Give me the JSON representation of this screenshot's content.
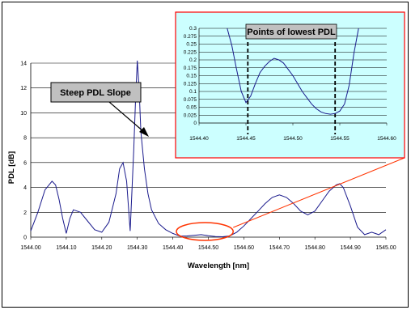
{
  "chart_data": [
    {
      "type": "line",
      "xlabel": "Wavelength [nm]",
      "ylabel": "PDL [dB]",
      "xlim": [
        1544.0,
        1545.0
      ],
      "ylim": [
        0,
        14
      ],
      "x_tick_labels": [
        "1544.00",
        "1544.10",
        "1544.20",
        "1544.30",
        "1544.40",
        "1544.50",
        "1544.60",
        "1544.70",
        "1544.80",
        "1544.90",
        "1545.00"
      ],
      "y_tick_labels": [
        "0",
        "2",
        "4",
        "6",
        "8",
        "10",
        "12",
        "14"
      ],
      "grid": "horizontal",
      "line_color": "#1a1a8c",
      "annotation": "Steep PDL Slope",
      "highlight_region_x": [
        1544.41,
        1544.57
      ],
      "series": [
        {
          "x": [
            1544.0,
            1544.02,
            1544.04,
            1544.06,
            1544.07,
            1544.08,
            1544.09,
            1544.1,
            1544.11,
            1544.12,
            1544.14,
            1544.16,
            1544.18,
            1544.2,
            1544.22,
            1544.24,
            1544.25,
            1544.26,
            1544.27,
            1544.28,
            1544.29,
            1544.295,
            1544.3,
            1544.305,
            1544.31,
            1544.32,
            1544.33,
            1544.34,
            1544.36,
            1544.38,
            1544.4,
            1544.42,
            1544.44,
            1544.46,
            1544.48,
            1544.5,
            1544.52,
            1544.54,
            1544.56,
            1544.58,
            1544.6,
            1544.62,
            1544.64,
            1544.66,
            1544.68,
            1544.7,
            1544.72,
            1544.74,
            1544.76,
            1544.78,
            1544.8,
            1544.82,
            1544.84,
            1544.86,
            1544.87,
            1544.88,
            1544.9,
            1544.92,
            1544.94,
            1544.96,
            1544.98,
            1545.0
          ],
          "y": [
            0.5,
            2.0,
            3.8,
            4.5,
            4.2,
            3.0,
            1.5,
            0.3,
            1.5,
            2.2,
            2.0,
            1.3,
            0.6,
            0.4,
            1.2,
            3.5,
            5.5,
            6.0,
            4.5,
            0.5,
            7.0,
            11.0,
            14.2,
            12.0,
            8.5,
            5.5,
            3.5,
            2.2,
            1.1,
            0.6,
            0.3,
            0.08,
            0.1,
            0.15,
            0.2,
            0.12,
            0.05,
            0.03,
            0.1,
            0.4,
            0.9,
            1.5,
            2.1,
            2.7,
            3.2,
            3.4,
            3.2,
            2.7,
            2.1,
            1.8,
            2.1,
            2.9,
            3.7,
            4.2,
            4.3,
            4.0,
            2.5,
            0.8,
            0.2,
            0.4,
            0.2,
            0.6
          ]
        }
      ]
    },
    {
      "type": "line",
      "title": "Points of lowest PDL",
      "xlim": [
        1544.4,
        1544.6
      ],
      "ylim": [
        0,
        0.3
      ],
      "x_tick_labels": [
        "1544.40",
        "1544.45",
        "1544.50",
        "1544.55",
        "1544.60"
      ],
      "y_tick_labels": [
        "0",
        "0.025",
        "0.05",
        "0.075",
        "0.1",
        "0.125",
        "0.15",
        "0.175",
        "0.2",
        "0.225",
        "0.25",
        "0.275",
        "0.3"
      ],
      "grid": "horizontal",
      "background": "#ccffff",
      "border_color": "#ff0000",
      "marked_minima_x": [
        1544.452,
        1544.545
      ],
      "series": [
        {
          "x": [
            1544.43,
            1544.435,
            1544.44,
            1544.445,
            1544.45,
            1544.455,
            1544.46,
            1544.465,
            1544.47,
            1544.475,
            1544.48,
            1544.485,
            1544.49,
            1544.495,
            1544.5,
            1544.505,
            1544.51,
            1544.515,
            1544.52,
            1544.525,
            1544.53,
            1544.535,
            1544.54,
            1544.545,
            1544.55,
            1544.555,
            1544.56,
            1544.565,
            1544.57
          ],
          "y": [
            0.3,
            0.245,
            0.17,
            0.1,
            0.065,
            0.085,
            0.125,
            0.16,
            0.18,
            0.195,
            0.205,
            0.2,
            0.19,
            0.17,
            0.15,
            0.125,
            0.1,
            0.08,
            0.06,
            0.045,
            0.035,
            0.03,
            0.028,
            0.03,
            0.038,
            0.06,
            0.12,
            0.22,
            0.3
          ]
        }
      ]
    }
  ]
}
